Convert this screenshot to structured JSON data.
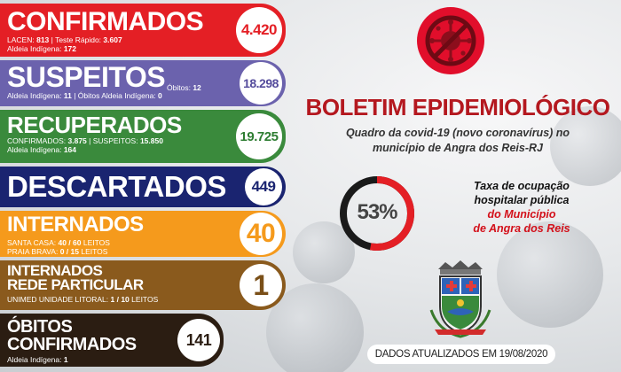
{
  "confirmados": {
    "title": "CONFIRMADOS",
    "count": "4.420",
    "lacen_label": "LACEN:",
    "lacen_value": "813",
    "rapido_label": "Teste Rápido:",
    "rapido_value": "3.607",
    "aldeia_label": "Aldeia Indígena:",
    "aldeia_value": "172",
    "color": "#e41f25"
  },
  "suspeitos": {
    "title": "SUSPEITOS",
    "count": "18.298",
    "obitos_label": "Óbitos:",
    "obitos_value": "12",
    "aldeia_label": "Aldeia Indígena:",
    "aldeia_value": "11",
    "obitos_aldeia_label": "Óbitos Aldeia Indígena:",
    "obitos_aldeia_value": "0",
    "color": "#6b62ad"
  },
  "recuperados": {
    "title": "RECUPERADOS",
    "count": "19.725",
    "confirmados_label": "CONFIRMADOS:",
    "confirmados_value": "3.875",
    "suspeitos_label": "SUSPEITOS:",
    "suspeitos_value": "15.850",
    "aldeia_label": "Aldeia Indígena:",
    "aldeia_value": "164",
    "color": "#3a8a3c"
  },
  "descartados": {
    "title": "DESCARTADOS",
    "count": "449",
    "color": "#1a2470"
  },
  "internados": {
    "title": "INTERNADOS",
    "count": "40",
    "santa_label": "SANTA CASA:",
    "santa_value": "40 / 60",
    "praia_label": "PRAIA BRAVA:",
    "praia_value": "0 / 15",
    "leitos": "LEITOS",
    "color": "#f59a1c"
  },
  "internados_particular": {
    "title_line1": "INTERNADOS",
    "title_line2": "REDE PARTICULAR",
    "count": "1",
    "unimed_label": "UNIMED UNIDADE LITORAL:",
    "unimed_value": "1 / 10",
    "leitos": "LEITOS",
    "color": "#8a5a1d"
  },
  "obitos": {
    "title_line1": "ÓBITOS",
    "title_line2": "CONFIRMADOS",
    "count": "141",
    "aldeia_label": "Aldeia Indígena:",
    "aldeia_value": "1",
    "color": "#2b1d12"
  },
  "boletim": {
    "headline": "BOLETIM EPIDEMIOLÓGICO",
    "subline1": "Quadro da covid-19 (novo coronavírus) no",
    "subline2": "município de Angra dos Reis-RJ"
  },
  "ocupacao": {
    "percent_text": "53%",
    "percent_value": 0.53,
    "line1": "Taxa de ocupação",
    "line2": "hospitalar pública",
    "line3": "do Município",
    "line4": "de Angra dos Reis",
    "gauge_color": "#e41f25"
  },
  "icons": {
    "logo": "virus-prohibited-icon",
    "crest": "angra-dos-reis-coat-of-arms"
  },
  "updated": "DADOS ATUALIZADOS EM 19/08/2020"
}
